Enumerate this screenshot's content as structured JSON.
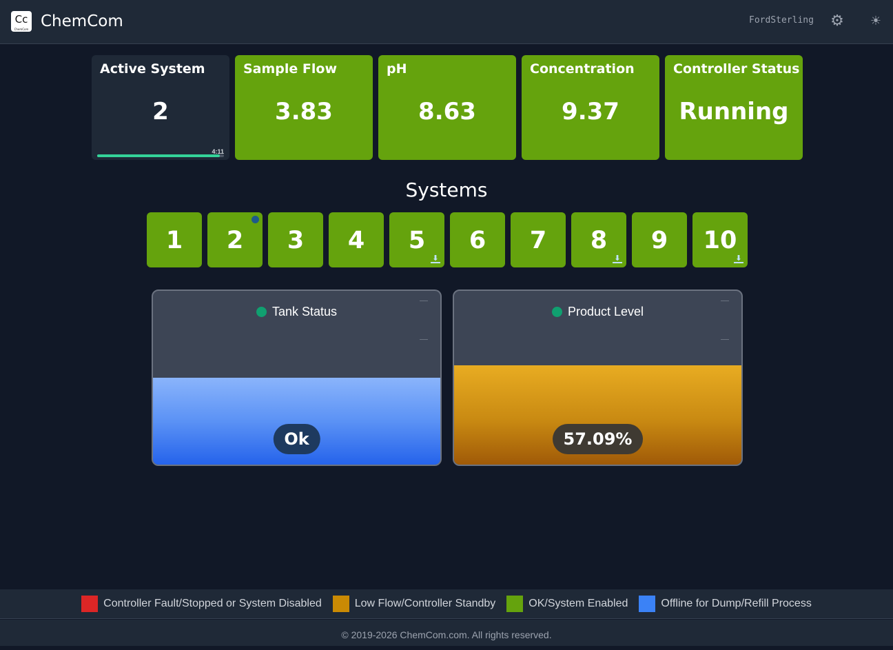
{
  "header": {
    "logo_text": "Cc",
    "logo_sub": "ChemCom",
    "brand": "ChemCom",
    "user": "FordSterling",
    "settings_icon": "gear-icon",
    "theme_icon": "sun-icon"
  },
  "cards": [
    {
      "title": "Active System",
      "value": "2",
      "timer": "4:11",
      "progress": 0.97
    },
    {
      "title": "Sample Flow",
      "value": "3.83"
    },
    {
      "title": "pH",
      "value": "8.63"
    },
    {
      "title": "Concentration",
      "value": "9.37"
    },
    {
      "title": "Controller Status",
      "value": "Running"
    }
  ],
  "systems": {
    "title": "Systems",
    "items": [
      {
        "label": "1"
      },
      {
        "label": "2",
        "active_dot": true
      },
      {
        "label": "3"
      },
      {
        "label": "4"
      },
      {
        "label": "5",
        "download": true
      },
      {
        "label": "6"
      },
      {
        "label": "7"
      },
      {
        "label": "8",
        "download": true
      },
      {
        "label": "9"
      },
      {
        "label": "10",
        "download": true
      }
    ]
  },
  "tanks": [
    {
      "title": "Tank Status",
      "status": "Ok",
      "level_percent": 50,
      "fill_color": "#3b82f6"
    },
    {
      "title": "Product Level",
      "status": "57.09%",
      "level_percent": 57.09,
      "fill_color": "#d4920d"
    }
  ],
  "legend": [
    {
      "label": "Controller Fault/Stopped or System Disabled",
      "color": "#dc2626"
    },
    {
      "label": "Low Flow/Controller Standby",
      "color": "#ca8a04"
    },
    {
      "label": "OK/System Enabled",
      "color": "#65a30d"
    },
    {
      "label": "Offline for Dump/Refill Process",
      "color": "#3b82f6"
    }
  ],
  "footer": {
    "copyright": "© 2019-2026 ChemCom.com. All rights reserved."
  },
  "colors": {
    "ok_green": "#65a30d",
    "background": "#111827",
    "header": "#1f2937"
  }
}
